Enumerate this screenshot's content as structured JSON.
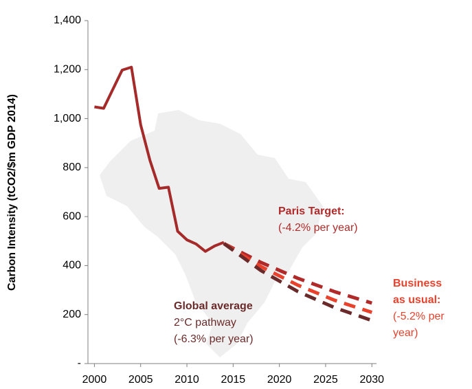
{
  "chart_data": {
    "type": "line",
    "ylabel": "Carbon Intensity (tCO2/$m GDP 2014)",
    "xlim": [
      1999.3,
      2030.5
    ],
    "xticks": [
      2000,
      2005,
      2010,
      2015,
      2020,
      2025,
      2030
    ],
    "ylim": [
      0,
      1400
    ],
    "yticks": [
      {
        "value": 0,
        "label": "-"
      },
      200,
      400,
      600,
      800,
      {
        "value": 1000,
        "label": "1,000"
      },
      {
        "value": 1200,
        "label": "1,200"
      },
      {
        "value": 1400,
        "label": "1,400"
      }
    ],
    "series": [
      {
        "color": "#a52a2a",
        "style": "solid",
        "x": [
          2000,
          2001,
          2002,
          2003,
          2004,
          2005,
          2006,
          2007,
          2008,
          2009,
          2010,
          2011,
          2012,
          2013,
          2014
        ],
        "values": [
          1048,
          1042,
          1120,
          1198,
          1210,
          975,
          830,
          715,
          720,
          540,
          505,
          488,
          458,
          480,
          495
        ]
      },
      {
        "color": "#b02a2a",
        "style": "dashed",
        "x": [
          2014,
          2018,
          2022,
          2026,
          2030
        ],
        "values": [
          490,
          413,
          348,
          293,
          247
        ]
      },
      {
        "color": "#e8412c",
        "style": "dashed",
        "x": [
          2014,
          2018,
          2022,
          2026,
          2030
        ],
        "values": [
          490,
          396,
          320,
          258,
          209
        ]
      },
      {
        "color": "#6b2a2a",
        "style": "dashed",
        "x": [
          2014,
          2018,
          2022,
          2026,
          2030
        ],
        "values": [
          490,
          380,
          294,
          228,
          176
        ]
      }
    ],
    "annotations": [
      {
        "color": "#b02a2a",
        "lines": [
          "Paris Target:",
          "(-4.2% per year)"
        ]
      },
      {
        "color": "#e8412c",
        "lines": [
          "Business",
          "as usual:",
          "(-5.2% per",
          "year)"
        ]
      },
      {
        "color": "#6b2a2a",
        "lines": [
          "Global average",
          "2°C pathway",
          "(-6.3% per year)"
        ]
      }
    ]
  }
}
